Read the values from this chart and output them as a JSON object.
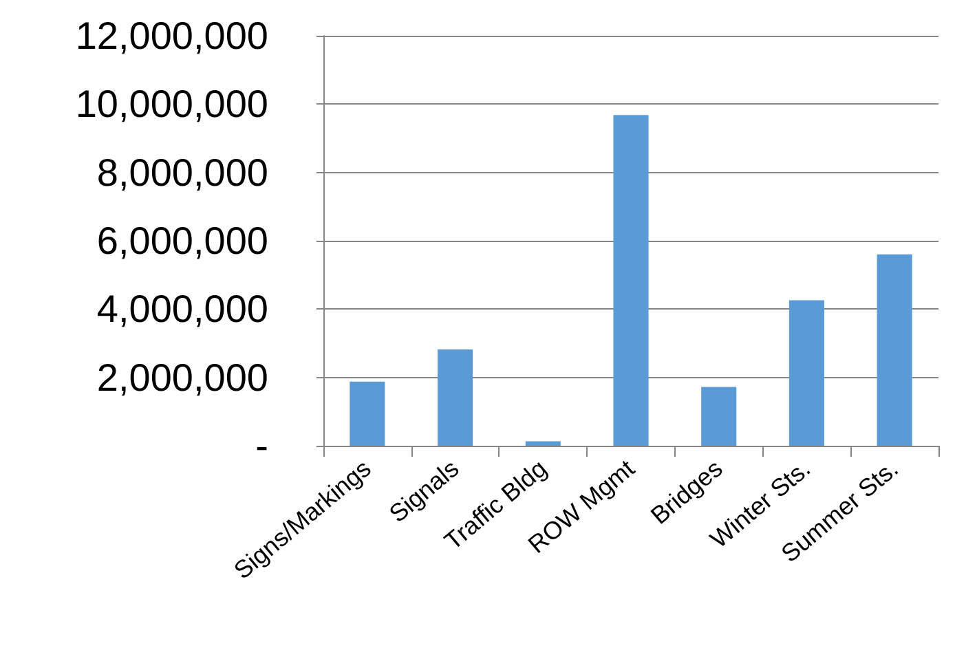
{
  "chart_data": {
    "type": "bar",
    "categories": [
      "Signs/Markings",
      "Signals",
      "Traffic Bldg",
      "ROW Mgmt",
      "Bridges",
      "Winter Sts.",
      "Summer Sts."
    ],
    "values": [
      1880000,
      2820000,
      130000,
      9680000,
      1720000,
      4260000,
      5600000
    ],
    "color": "#5b9bd5",
    "ylim": [
      0,
      12000000
    ],
    "yticks": [
      {
        "value": 0,
        "label": "-"
      },
      {
        "value": 2000000,
        "label": "2,000,000"
      },
      {
        "value": 4000000,
        "label": "4,000,000"
      },
      {
        "value": 6000000,
        "label": "6,000,000"
      },
      {
        "value": 8000000,
        "label": "8,000,000"
      },
      {
        "value": 10000000,
        "label": "10,000,000"
      },
      {
        "value": 12000000,
        "label": "12,000,000"
      }
    ],
    "grid": "y"
  }
}
